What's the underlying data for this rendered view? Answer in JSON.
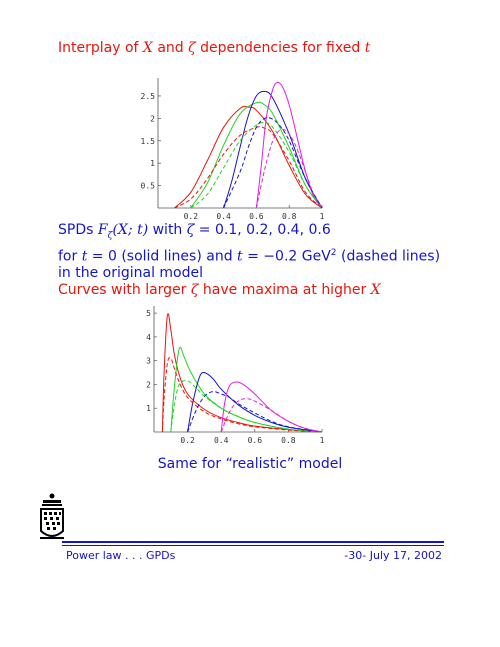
{
  "heading": {
    "prefix": "Interplay of ",
    "var1": "X",
    "mid": " and ",
    "var2": "ζ",
    "mid2": " dependencies for fixed ",
    "var3": "t"
  },
  "description": {
    "l1_a": "SPDs ",
    "l1_math": "F",
    "l1_sub": "ζ",
    "l1_math2": "(X; t)",
    "l1_b": " with ",
    "l1_math3": "ζ",
    "l1_c": " = 0.1, 0.2, 0.4, 0.6",
    "l2_a": "for ",
    "l2_math": "t",
    "l2_b": " = 0 (solid lines) and ",
    "l2_math2": "t",
    "l2_c": " = −0.2 GeV",
    "l2_sup": "2",
    "l2_d": " (dashed lines)",
    "l3": "in the original model",
    "l4_a": "Curves with larger ",
    "l4_math": "ζ",
    "l4_b": " have maxima at higher ",
    "l4_math2": "X"
  },
  "caption2": "Same for “realistic” model",
  "footer": {
    "left": "Power law . . . GPDs",
    "right": "-30-   July 17, 2002"
  },
  "colors": {
    "red": "#e8150c",
    "blue": "#1515c8",
    "green": "#22d422",
    "magenta": "#e020e0"
  },
  "chart_data": [
    {
      "type": "line",
      "xlim": [
        0,
        1
      ],
      "ylim": [
        0,
        2.9
      ],
      "xticks": [
        "0.2",
        "0.4",
        "0.6",
        "0.8",
        "1"
      ],
      "yticks": [
        "0.5",
        "1",
        "1.5",
        "2",
        "2.5"
      ],
      "series": [
        {
          "color": "#e8150c",
          "style": "solid",
          "x": [
            0.1,
            0.2,
            0.3,
            0.4,
            0.5,
            0.55,
            0.6,
            0.7,
            0.8,
            0.9,
            1.0
          ],
          "y": [
            0,
            0.35,
            1.05,
            1.8,
            2.22,
            2.25,
            2.18,
            1.7,
            0.95,
            0.3,
            0
          ]
        },
        {
          "color": "#22d422",
          "style": "solid",
          "x": [
            0.2,
            0.3,
            0.4,
            0.5,
            0.6,
            0.65,
            0.7,
            0.8,
            0.9,
            1.0
          ],
          "y": [
            0,
            0.55,
            1.4,
            2.1,
            2.35,
            2.3,
            2.1,
            1.35,
            0.5,
            0
          ]
        },
        {
          "color": "#1515c8",
          "style": "solid",
          "x": [
            0.4,
            0.45,
            0.5,
            0.55,
            0.6,
            0.65,
            0.7,
            0.8,
            0.9,
            1.0
          ],
          "y": [
            0,
            0.6,
            1.35,
            2.05,
            2.5,
            2.6,
            2.45,
            1.65,
            0.65,
            0
          ]
        },
        {
          "color": "#e020e0",
          "style": "solid",
          "x": [
            0.6,
            0.63,
            0.66,
            0.7,
            0.73,
            0.76,
            0.8,
            0.85,
            0.9,
            0.95,
            1.0
          ],
          "y": [
            0,
            0.95,
            2.0,
            2.65,
            2.8,
            2.7,
            2.3,
            1.55,
            0.8,
            0.25,
            0
          ]
        },
        {
          "color": "#e8150c",
          "style": "dashed",
          "x": [
            0.1,
            0.2,
            0.3,
            0.4,
            0.5,
            0.6,
            0.65,
            0.7,
            0.8,
            0.9,
            1.0
          ],
          "y": [
            0,
            0.2,
            0.65,
            1.2,
            1.62,
            1.8,
            1.78,
            1.65,
            1.05,
            0.35,
            0
          ]
        },
        {
          "color": "#22d422",
          "style": "dashed",
          "x": [
            0.2,
            0.3,
            0.4,
            0.5,
            0.6,
            0.65,
            0.7,
            0.8,
            0.9,
            1.0
          ],
          "y": [
            0,
            0.3,
            0.9,
            1.5,
            1.85,
            1.9,
            1.8,
            1.25,
            0.5,
            0
          ]
        },
        {
          "color": "#1515c8",
          "style": "dashed",
          "x": [
            0.4,
            0.5,
            0.55,
            0.6,
            0.65,
            0.7,
            0.75,
            0.8,
            0.9,
            1.0
          ],
          "y": [
            0,
            0.8,
            1.35,
            1.8,
            2.0,
            1.98,
            1.8,
            1.5,
            0.65,
            0
          ]
        },
        {
          "color": "#e020e0",
          "style": "dashed",
          "x": [
            0.6,
            0.65,
            0.7,
            0.75,
            0.8,
            0.85,
            0.9,
            0.95,
            1.0
          ],
          "y": [
            0,
            0.85,
            1.5,
            1.75,
            1.65,
            1.3,
            0.8,
            0.3,
            0
          ]
        }
      ]
    },
    {
      "type": "line",
      "xlim": [
        0,
        1
      ],
      "ylim": [
        0,
        5.3
      ],
      "xticks": [
        "0.2",
        "0.4",
        "0.6",
        "0.8",
        "1"
      ],
      "yticks": [
        "1",
        "2",
        "3",
        "4",
        "5"
      ],
      "series": [
        {
          "color": "#e8150c",
          "style": "solid",
          "x": [
            0.05,
            0.06,
            0.08,
            0.1,
            0.12,
            0.15,
            0.2,
            0.3,
            0.4,
            0.5,
            0.6,
            0.8,
            1.0
          ],
          "y": [
            0,
            2.5,
            4.9,
            4.3,
            3.3,
            2.4,
            1.6,
            0.95,
            0.6,
            0.4,
            0.25,
            0.1,
            0
          ]
        },
        {
          "color": "#22d422",
          "style": "solid",
          "x": [
            0.1,
            0.12,
            0.15,
            0.18,
            0.22,
            0.3,
            0.4,
            0.5,
            0.6,
            0.8,
            1.0
          ],
          "y": [
            0,
            1.8,
            3.5,
            3.15,
            2.5,
            1.6,
            1.0,
            0.65,
            0.4,
            0.12,
            0
          ]
        },
        {
          "color": "#1515c8",
          "style": "solid",
          "x": [
            0.2,
            0.23,
            0.27,
            0.3,
            0.35,
            0.4,
            0.5,
            0.6,
            0.7,
            0.8,
            1.0
          ],
          "y": [
            0,
            1.2,
            2.3,
            2.5,
            2.25,
            1.8,
            1.15,
            0.7,
            0.4,
            0.2,
            0
          ]
        },
        {
          "color": "#e020e0",
          "style": "solid",
          "x": [
            0.4,
            0.42,
            0.45,
            0.5,
            0.55,
            0.6,
            0.7,
            0.8,
            0.9,
            1.0
          ],
          "y": [
            0,
            1.2,
            1.95,
            2.1,
            1.9,
            1.6,
            0.9,
            0.45,
            0.15,
            0
          ]
        },
        {
          "color": "#e8150c",
          "style": "dashed",
          "x": [
            0.05,
            0.06,
            0.08,
            0.1,
            0.12,
            0.15,
            0.2,
            0.3,
            0.4,
            0.5,
            0.6,
            0.8,
            1.0
          ],
          "y": [
            0,
            1.4,
            2.9,
            3.1,
            2.7,
            2.1,
            1.45,
            0.85,
            0.55,
            0.35,
            0.22,
            0.08,
            0
          ]
        },
        {
          "color": "#22d422",
          "style": "dashed",
          "x": [
            0.1,
            0.12,
            0.15,
            0.2,
            0.25,
            0.3,
            0.4,
            0.5,
            0.6,
            0.8,
            1.0
          ],
          "y": [
            0,
            1.1,
            2.0,
            2.15,
            1.85,
            1.5,
            1.0,
            0.65,
            0.4,
            0.12,
            0
          ]
        },
        {
          "color": "#1515c8",
          "style": "dashed",
          "x": [
            0.2,
            0.25,
            0.3,
            0.35,
            0.4,
            0.45,
            0.5,
            0.6,
            0.7,
            0.8,
            1.0
          ],
          "y": [
            0,
            0.9,
            1.5,
            1.7,
            1.6,
            1.45,
            1.2,
            0.8,
            0.45,
            0.22,
            0
          ]
        },
        {
          "color": "#e020e0",
          "style": "dashed",
          "x": [
            0.4,
            0.45,
            0.5,
            0.55,
            0.6,
            0.7,
            0.8,
            0.9,
            1.0
          ],
          "y": [
            0,
            0.85,
            1.3,
            1.4,
            1.3,
            0.9,
            0.45,
            0.15,
            0
          ]
        }
      ]
    }
  ]
}
